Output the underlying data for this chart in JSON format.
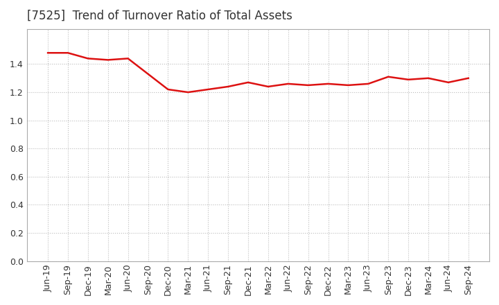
{
  "title": "[7525]  Trend of Turnover Ratio of Total Assets",
  "x_labels": [
    "Jun-19",
    "Sep-19",
    "Dec-19",
    "Mar-20",
    "Jun-20",
    "Sep-20",
    "Dec-20",
    "Mar-21",
    "Jun-21",
    "Sep-21",
    "Dec-21",
    "Mar-22",
    "Jun-22",
    "Sep-22",
    "Dec-22",
    "Mar-23",
    "Jun-23",
    "Sep-23",
    "Dec-23",
    "Mar-24",
    "Jun-24",
    "Sep-24"
  ],
  "y_values": [
    1.48,
    1.48,
    1.44,
    1.43,
    1.44,
    1.33,
    1.22,
    1.2,
    1.22,
    1.24,
    1.27,
    1.24,
    1.26,
    1.25,
    1.26,
    1.25,
    1.26,
    1.31,
    1.29,
    1.3,
    1.27,
    1.3
  ],
  "ylim": [
    0.0,
    1.65
  ],
  "yticks": [
    0.0,
    0.2,
    0.4,
    0.6,
    0.8,
    1.0,
    1.2,
    1.4
  ],
  "line_color": "#dd1111",
  "grid_color": "#bbbbbb",
  "background_color": "#ffffff",
  "title_fontsize": 12,
  "tick_fontsize": 9
}
